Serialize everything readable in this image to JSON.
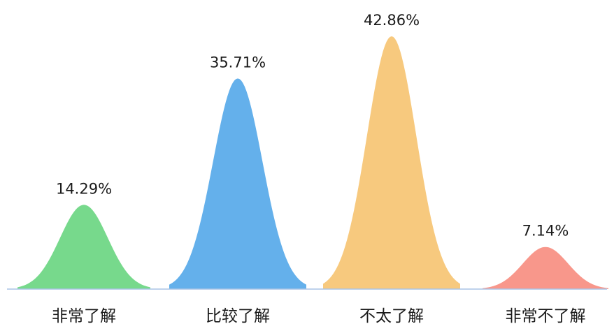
{
  "chart_data": {
    "type": "area",
    "categories": [
      "非常了解",
      "比较了解",
      "不太了解",
      "非常不了解"
    ],
    "values": [
      14.29,
      35.71,
      42.86,
      7.14
    ],
    "value_labels": [
      "14.29%",
      "35.71%",
      "42.86%",
      "7.14%"
    ],
    "colors": [
      "#77d98c",
      "#64b0eb",
      "#f7c97e",
      "#f8978b"
    ],
    "baseline_color": "#a9c4e6",
    "label_color": "#1a1a1a",
    "ylim": [
      0,
      42.86
    ]
  }
}
